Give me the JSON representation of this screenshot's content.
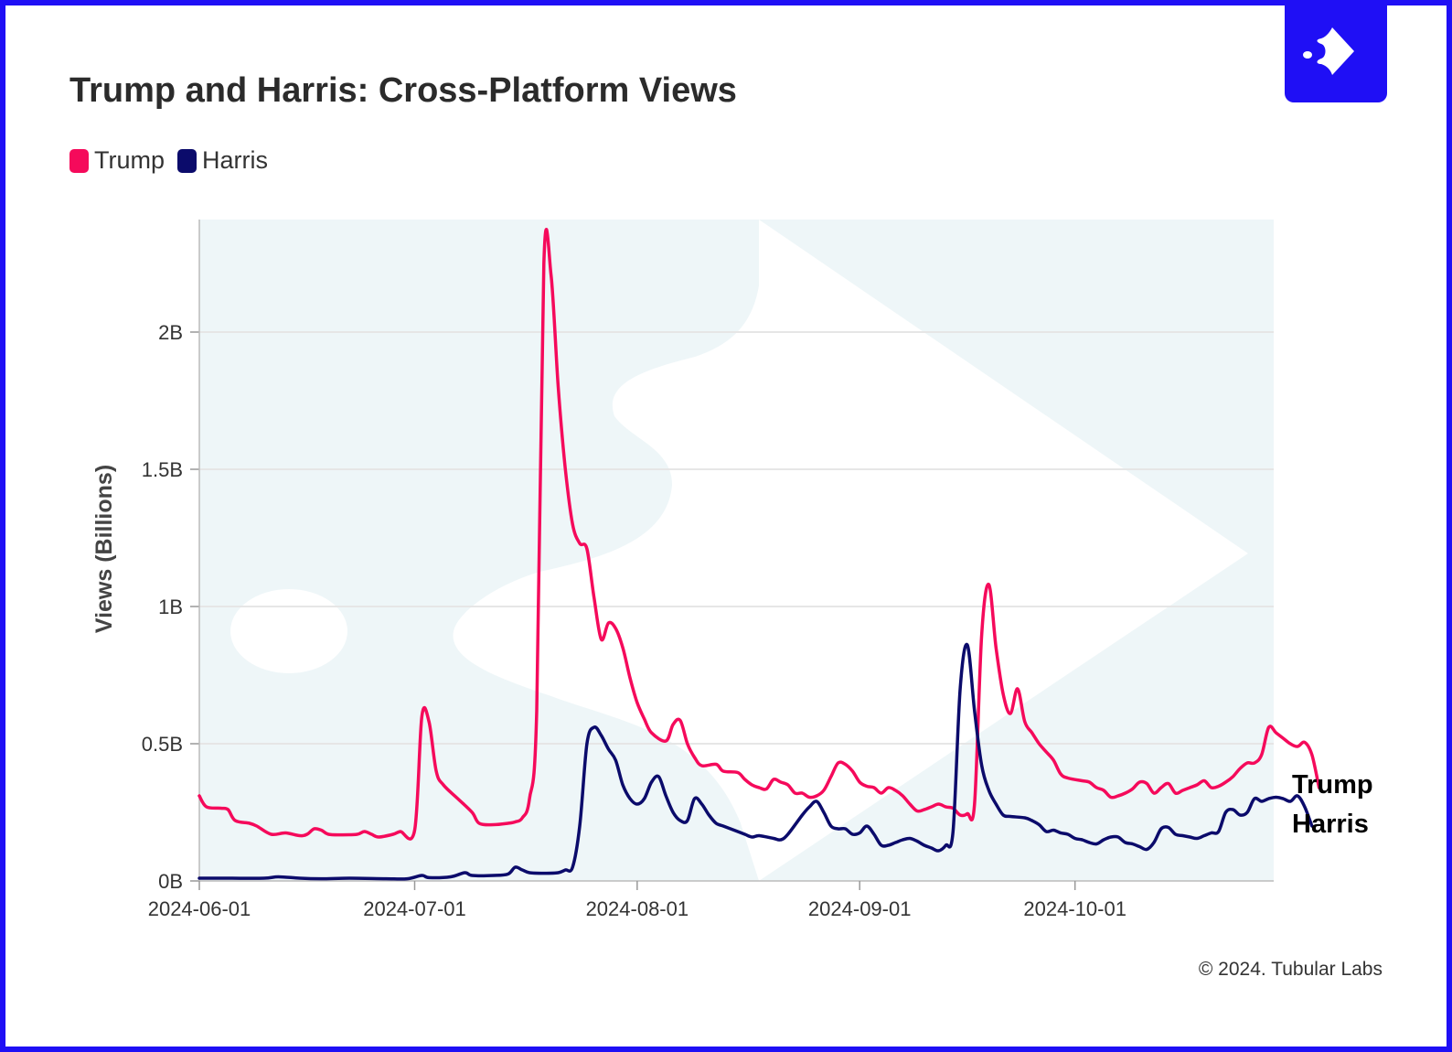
{
  "title": "Trump and Harris: Cross-Platform Views",
  "legend": [
    {
      "name": "Trump",
      "color": "#f50a5b"
    },
    {
      "name": "Harris",
      "color": "#0b0b6b"
    }
  ],
  "end_labels": {
    "top": "Trump",
    "bottom": "Harris"
  },
  "copyright": "© 2024. Tubular Labs",
  "logo_icon": "tubular-fish-arrow-icon",
  "colors": {
    "brand": "#1f0ff5",
    "plot_bg": "#eef6f8",
    "grid": "#e6e6e6"
  },
  "chart_data": {
    "type": "line",
    "title": "Trump and Harris: Cross-Platform Views",
    "xlabel": "",
    "ylabel": "Views (Billions)",
    "x_start": "2024-06-01",
    "x_end": "2024-10-31",
    "x_ticks": [
      "2024-06-01",
      "2024-07-01",
      "2024-08-01",
      "2024-09-01",
      "2024-10-01"
    ],
    "y_ticks": [
      {
        "value": 0,
        "label": "0B"
      },
      {
        "value": 0.5,
        "label": "0.5B"
      },
      {
        "value": 1,
        "label": "1B"
      },
      {
        "value": 1.5,
        "label": "1.5B"
      },
      {
        "value": 2,
        "label": "2B"
      }
    ],
    "ylim": [
      0,
      2.4
    ],
    "grid": true,
    "legend_position": "top-left",
    "series": [
      {
        "name": "Trump",
        "color": "#f50a5b",
        "points": [
          [
            "2024-06-01",
            0.31
          ],
          [
            "2024-06-02",
            0.27
          ],
          [
            "2024-06-04",
            0.265
          ],
          [
            "2024-06-05",
            0.26
          ],
          [
            "2024-06-06",
            0.22
          ],
          [
            "2024-06-08",
            0.21
          ],
          [
            "2024-06-09",
            0.2
          ],
          [
            "2024-06-11",
            0.17
          ],
          [
            "2024-06-13",
            0.175
          ],
          [
            "2024-06-15",
            0.165
          ],
          [
            "2024-06-16",
            0.17
          ],
          [
            "2024-06-17",
            0.19
          ],
          [
            "2024-06-18",
            0.185
          ],
          [
            "2024-06-19",
            0.17
          ],
          [
            "2024-06-21",
            0.168
          ],
          [
            "2024-06-23",
            0.17
          ],
          [
            "2024-06-24",
            0.18
          ],
          [
            "2024-06-25",
            0.17
          ],
          [
            "2024-06-26",
            0.16
          ],
          [
            "2024-06-28",
            0.17
          ],
          [
            "2024-06-29",
            0.18
          ],
          [
            "2024-07-01",
            0.185
          ],
          [
            "2024-07-02",
            0.6
          ],
          [
            "2024-07-03",
            0.58
          ],
          [
            "2024-07-04",
            0.4
          ],
          [
            "2024-07-05",
            0.35
          ],
          [
            "2024-07-07",
            0.3
          ],
          [
            "2024-07-09",
            0.25
          ],
          [
            "2024-07-10",
            0.21
          ],
          [
            "2024-07-12",
            0.205
          ],
          [
            "2024-07-14",
            0.21
          ],
          [
            "2024-07-15",
            0.215
          ],
          [
            "2024-07-16",
            0.23
          ],
          [
            "2024-07-17",
            0.3
          ],
          [
            "2024-07-18",
            0.62
          ],
          [
            "2024-07-19",
            2.25
          ],
          [
            "2024-07-20",
            2.21
          ],
          [
            "2024-07-21",
            1.8
          ],
          [
            "2024-07-22",
            1.5
          ],
          [
            "2024-07-23",
            1.3
          ],
          [
            "2024-07-24",
            1.23
          ],
          [
            "2024-07-25",
            1.21
          ],
          [
            "2024-07-26",
            1.03
          ],
          [
            "2024-07-27",
            0.88
          ],
          [
            "2024-07-28",
            0.94
          ],
          [
            "2024-07-29",
            0.92
          ],
          [
            "2024-07-30",
            0.85
          ],
          [
            "2024-07-31",
            0.74
          ],
          [
            "2024-08-01",
            0.65
          ],
          [
            "2024-08-02",
            0.59
          ],
          [
            "2024-08-03",
            0.54
          ],
          [
            "2024-08-05",
            0.51
          ],
          [
            "2024-08-06",
            0.57
          ],
          [
            "2024-08-07",
            0.585
          ],
          [
            "2024-08-08",
            0.5
          ],
          [
            "2024-08-09",
            0.45
          ],
          [
            "2024-08-10",
            0.42
          ],
          [
            "2024-08-12",
            0.425
          ],
          [
            "2024-08-13",
            0.4
          ],
          [
            "2024-08-15",
            0.395
          ],
          [
            "2024-08-16",
            0.37
          ],
          [
            "2024-08-17",
            0.35
          ],
          [
            "2024-08-18",
            0.34
          ],
          [
            "2024-08-19",
            0.335
          ],
          [
            "2024-08-20",
            0.37
          ],
          [
            "2024-08-21",
            0.36
          ],
          [
            "2024-08-22",
            0.35
          ],
          [
            "2024-08-23",
            0.32
          ],
          [
            "2024-08-24",
            0.32
          ],
          [
            "2024-08-25",
            0.305
          ],
          [
            "2024-08-26",
            0.31
          ],
          [
            "2024-08-27",
            0.33
          ],
          [
            "2024-08-28",
            0.38
          ],
          [
            "2024-08-29",
            0.43
          ],
          [
            "2024-08-30",
            0.425
          ],
          [
            "2024-08-31",
            0.4
          ],
          [
            "2024-09-01",
            0.36
          ],
          [
            "2024-09-02",
            0.345
          ],
          [
            "2024-09-03",
            0.34
          ],
          [
            "2024-09-04",
            0.32
          ],
          [
            "2024-09-05",
            0.34
          ],
          [
            "2024-09-06",
            0.33
          ],
          [
            "2024-09-07",
            0.31
          ],
          [
            "2024-09-08",
            0.28
          ],
          [
            "2024-09-09",
            0.255
          ],
          [
            "2024-09-10",
            0.26
          ],
          [
            "2024-09-11",
            0.27
          ],
          [
            "2024-09-12",
            0.28
          ],
          [
            "2024-09-13",
            0.27
          ],
          [
            "2024-09-14",
            0.265
          ],
          [
            "2024-09-15",
            0.24
          ],
          [
            "2024-09-16",
            0.245
          ],
          [
            "2024-09-17",
            0.28
          ],
          [
            "2024-09-18",
            0.9
          ],
          [
            "2024-09-19",
            1.08
          ],
          [
            "2024-09-20",
            0.85
          ],
          [
            "2024-09-21",
            0.68
          ],
          [
            "2024-09-22",
            0.61
          ],
          [
            "2024-09-23",
            0.7
          ],
          [
            "2024-09-24",
            0.58
          ],
          [
            "2024-09-25",
            0.54
          ],
          [
            "2024-09-26",
            0.5
          ],
          [
            "2024-09-27",
            0.47
          ],
          [
            "2024-09-28",
            0.44
          ],
          [
            "2024-09-29",
            0.39
          ],
          [
            "2024-09-30",
            0.375
          ],
          [
            "2024-10-02",
            0.365
          ],
          [
            "2024-10-03",
            0.36
          ],
          [
            "2024-10-04",
            0.34
          ],
          [
            "2024-10-05",
            0.33
          ],
          [
            "2024-10-06",
            0.305
          ],
          [
            "2024-10-07",
            0.31
          ],
          [
            "2024-10-08",
            0.32
          ],
          [
            "2024-10-09",
            0.335
          ],
          [
            "2024-10-10",
            0.36
          ],
          [
            "2024-10-11",
            0.355
          ],
          [
            "2024-10-12",
            0.32
          ],
          [
            "2024-10-13",
            0.34
          ],
          [
            "2024-10-14",
            0.355
          ],
          [
            "2024-10-15",
            0.32
          ],
          [
            "2024-10-16",
            0.33
          ],
          [
            "2024-10-17",
            0.34
          ],
          [
            "2024-10-18",
            0.35
          ],
          [
            "2024-10-19",
            0.365
          ],
          [
            "2024-10-20",
            0.34
          ],
          [
            "2024-10-21",
            0.345
          ],
          [
            "2024-10-22",
            0.36
          ],
          [
            "2024-10-23",
            0.38
          ],
          [
            "2024-10-24",
            0.41
          ],
          [
            "2024-10-25",
            0.43
          ],
          [
            "2024-10-26",
            0.43
          ],
          [
            "2024-10-27",
            0.46
          ],
          [
            "2024-10-28",
            0.56
          ],
          [
            "2024-10-29",
            0.54
          ],
          [
            "2024-10-30",
            0.52
          ],
          [
            "2024-10-31",
            0.5
          ],
          [
            "2024-11-01",
            0.49
          ],
          [
            "2024-11-02",
            0.505
          ],
          [
            "2024-11-03",
            0.46
          ],
          [
            "2024-11-04",
            0.34
          ]
        ]
      },
      {
        "name": "Harris",
        "color": "#0b0b6b",
        "points": [
          [
            "2024-06-01",
            0.01
          ],
          [
            "2024-06-05",
            0.01
          ],
          [
            "2024-06-10",
            0.01
          ],
          [
            "2024-06-12",
            0.015
          ],
          [
            "2024-06-15",
            0.01
          ],
          [
            "2024-06-18",
            0.008
          ],
          [
            "2024-06-22",
            0.01
          ],
          [
            "2024-06-27",
            0.008
          ],
          [
            "2024-06-30",
            0.008
          ],
          [
            "2024-07-02",
            0.02
          ],
          [
            "2024-07-03",
            0.012
          ],
          [
            "2024-07-06",
            0.015
          ],
          [
            "2024-07-08",
            0.03
          ],
          [
            "2024-07-09",
            0.02
          ],
          [
            "2024-07-12",
            0.02
          ],
          [
            "2024-07-14",
            0.025
          ],
          [
            "2024-07-15",
            0.05
          ],
          [
            "2024-07-16",
            0.04
          ],
          [
            "2024-07-17",
            0.03
          ],
          [
            "2024-07-19",
            0.028
          ],
          [
            "2024-07-21",
            0.03
          ],
          [
            "2024-07-22",
            0.04
          ],
          [
            "2024-07-23",
            0.05
          ],
          [
            "2024-07-24",
            0.2
          ],
          [
            "2024-07-25",
            0.5
          ],
          [
            "2024-07-26",
            0.56
          ],
          [
            "2024-07-27",
            0.53
          ],
          [
            "2024-07-28",
            0.48
          ],
          [
            "2024-07-29",
            0.44
          ],
          [
            "2024-07-30",
            0.35
          ],
          [
            "2024-07-31",
            0.3
          ],
          [
            "2024-08-01",
            0.28
          ],
          [
            "2024-08-02",
            0.3
          ],
          [
            "2024-08-03",
            0.36
          ],
          [
            "2024-08-04",
            0.38
          ],
          [
            "2024-08-05",
            0.31
          ],
          [
            "2024-08-06",
            0.25
          ],
          [
            "2024-08-07",
            0.22
          ],
          [
            "2024-08-08",
            0.22
          ],
          [
            "2024-08-09",
            0.3
          ],
          [
            "2024-08-10",
            0.28
          ],
          [
            "2024-08-11",
            0.24
          ],
          [
            "2024-08-12",
            0.21
          ],
          [
            "2024-08-13",
            0.2
          ],
          [
            "2024-08-14",
            0.19
          ],
          [
            "2024-08-15",
            0.18
          ],
          [
            "2024-08-16",
            0.17
          ],
          [
            "2024-08-17",
            0.16
          ],
          [
            "2024-08-18",
            0.165
          ],
          [
            "2024-08-20",
            0.155
          ],
          [
            "2024-08-21",
            0.15
          ],
          [
            "2024-08-22",
            0.17
          ],
          [
            "2024-08-24",
            0.24
          ],
          [
            "2024-08-25",
            0.27
          ],
          [
            "2024-08-26",
            0.29
          ],
          [
            "2024-08-27",
            0.25
          ],
          [
            "2024-08-28",
            0.2
          ],
          [
            "2024-08-29",
            0.19
          ],
          [
            "2024-08-30",
            0.19
          ],
          [
            "2024-08-31",
            0.17
          ],
          [
            "2024-09-01",
            0.175
          ],
          [
            "2024-09-02",
            0.2
          ],
          [
            "2024-09-03",
            0.17
          ],
          [
            "2024-09-04",
            0.13
          ],
          [
            "2024-09-05",
            0.13
          ],
          [
            "2024-09-06",
            0.14
          ],
          [
            "2024-09-07",
            0.15
          ],
          [
            "2024-09-08",
            0.155
          ],
          [
            "2024-09-09",
            0.145
          ],
          [
            "2024-09-10",
            0.13
          ],
          [
            "2024-09-11",
            0.12
          ],
          [
            "2024-09-12",
            0.11
          ],
          [
            "2024-09-13",
            0.13
          ],
          [
            "2024-09-14",
            0.18
          ],
          [
            "2024-09-15",
            0.7
          ],
          [
            "2024-09-16",
            0.86
          ],
          [
            "2024-09-17",
            0.62
          ],
          [
            "2024-09-18",
            0.42
          ],
          [
            "2024-09-19",
            0.33
          ],
          [
            "2024-09-20",
            0.28
          ],
          [
            "2024-09-21",
            0.24
          ],
          [
            "2024-09-22",
            0.235
          ],
          [
            "2024-09-24",
            0.23
          ],
          [
            "2024-09-25",
            0.22
          ],
          [
            "2024-09-26",
            0.205
          ],
          [
            "2024-09-27",
            0.18
          ],
          [
            "2024-09-28",
            0.185
          ],
          [
            "2024-09-29",
            0.175
          ],
          [
            "2024-09-30",
            0.17
          ],
          [
            "2024-10-01",
            0.155
          ],
          [
            "2024-10-02",
            0.15
          ],
          [
            "2024-10-03",
            0.14
          ],
          [
            "2024-10-04",
            0.135
          ],
          [
            "2024-10-05",
            0.15
          ],
          [
            "2024-10-06",
            0.16
          ],
          [
            "2024-10-07",
            0.16
          ],
          [
            "2024-10-08",
            0.14
          ],
          [
            "2024-10-09",
            0.135
          ],
          [
            "2024-10-10",
            0.125
          ],
          [
            "2024-10-11",
            0.115
          ],
          [
            "2024-10-12",
            0.14
          ],
          [
            "2024-10-13",
            0.19
          ],
          [
            "2024-10-14",
            0.195
          ],
          [
            "2024-10-15",
            0.17
          ],
          [
            "2024-10-16",
            0.165
          ],
          [
            "2024-10-17",
            0.16
          ],
          [
            "2024-10-18",
            0.155
          ],
          [
            "2024-10-19",
            0.165
          ],
          [
            "2024-10-20",
            0.175
          ],
          [
            "2024-10-21",
            0.18
          ],
          [
            "2024-10-22",
            0.25
          ],
          [
            "2024-10-23",
            0.26
          ],
          [
            "2024-10-24",
            0.24
          ],
          [
            "2024-10-25",
            0.25
          ],
          [
            "2024-10-26",
            0.3
          ],
          [
            "2024-10-27",
            0.29
          ],
          [
            "2024-10-28",
            0.3
          ],
          [
            "2024-10-29",
            0.305
          ],
          [
            "2024-10-30",
            0.3
          ],
          [
            "2024-10-31",
            0.29
          ],
          [
            "2024-11-01",
            0.31
          ],
          [
            "2024-11-02",
            0.27
          ],
          [
            "2024-11-03",
            0.2
          ]
        ]
      }
    ]
  }
}
